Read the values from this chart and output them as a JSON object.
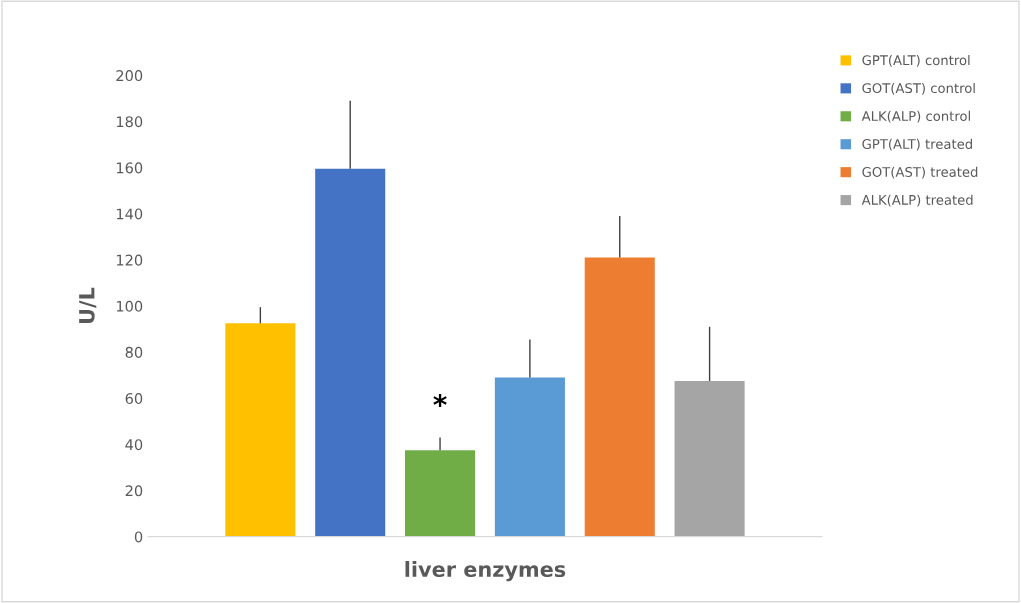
{
  "chart_data": {
    "type": "bar",
    "xlabel": "liver enzymes",
    "ylabel": "U/L",
    "categories": [
      null
    ],
    "series": [
      {
        "name": "GPT(ALT) control",
        "color": "#ffc000",
        "values": [
          92.5
        ],
        "errors": [
          [
            92.5,
            99.5
          ]
        ]
      },
      {
        "name": "GOT(AST) control",
        "color": "#4472c4",
        "values": [
          159.5
        ],
        "errors": [
          [
            159.5,
            189
          ]
        ]
      },
      {
        "name": "ALK(ALP) control",
        "color": "#70ad47",
        "values": [
          37.5
        ],
        "errors": [
          [
            37.5,
            43
          ]
        ]
      },
      {
        "name": "GPT(ALT) treated",
        "color": "#5b9bd5",
        "values": [
          69
        ],
        "errors": [
          [
            69,
            85.5
          ]
        ]
      },
      {
        "name": "GOT(AST) treated",
        "color": "#ed7d31",
        "values": [
          121
        ],
        "errors": [
          [
            121,
            139
          ]
        ]
      },
      {
        "name": "ALK(ALP) treated",
        "color": "#a5a5a5",
        "values": [
          67.5
        ],
        "errors": [
          [
            67.5,
            91
          ]
        ]
      }
    ],
    "annotations": [
      "*"
    ],
    "ylim": [
      0,
      200
    ],
    "yticks": [
      0,
      20,
      40,
      60,
      80,
      100,
      120,
      140,
      160,
      180,
      200
    ],
    "grid": false,
    "legend": "top right"
  }
}
